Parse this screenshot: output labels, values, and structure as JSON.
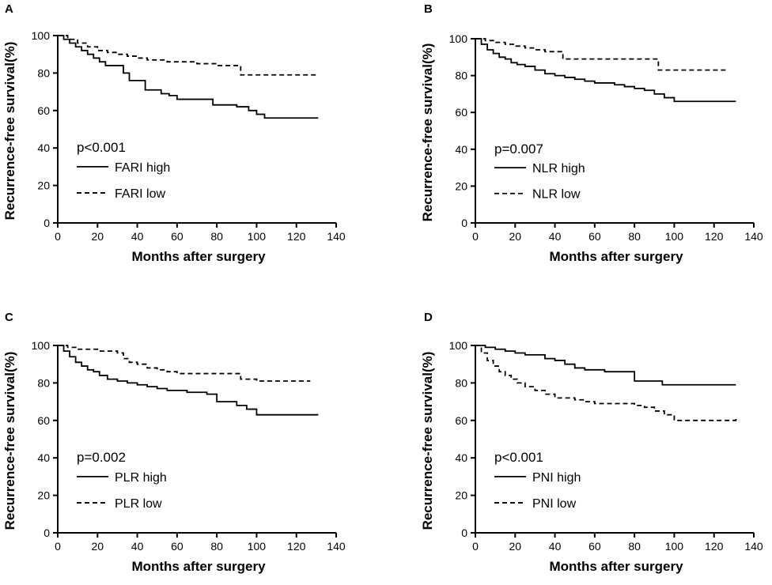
{
  "figure": {
    "panels": [
      "A",
      "B",
      "C",
      "D"
    ]
  },
  "chart_data": [
    {
      "type": "line",
      "panel_label": "A",
      "title": "",
      "xlabel": "Months after surgery",
      "ylabel": "Recurrence-free survival(%)",
      "xlim": [
        0,
        140
      ],
      "ylim": [
        0,
        100
      ],
      "xticks": [
        0,
        20,
        40,
        60,
        80,
        100,
        120,
        140
      ],
      "yticks": [
        0,
        20,
        40,
        60,
        80,
        100
      ],
      "grid": false,
      "annotation": "p<0.001",
      "series": [
        {
          "name": "FARI high",
          "style": "solid",
          "x": [
            0,
            3,
            6,
            9,
            12,
            15,
            18,
            21,
            24,
            27,
            30,
            33,
            36,
            40,
            44,
            48,
            52,
            56,
            60,
            66,
            72,
            78,
            84,
            90,
            96,
            100,
            104,
            110,
            120,
            131
          ],
          "y": [
            100,
            98,
            96,
            94,
            92,
            90,
            88,
            86,
            84,
            84,
            84,
            80,
            76,
            76,
            71,
            71,
            69,
            68,
            66,
            66,
            66,
            63,
            63,
            62,
            60,
            58,
            56,
            56,
            56,
            56
          ]
        },
        {
          "name": "FARI low",
          "style": "dashed",
          "x": [
            0,
            5,
            10,
            15,
            20,
            25,
            30,
            35,
            40,
            45,
            50,
            55,
            60,
            70,
            80,
            90,
            92,
            100,
            110,
            120,
            131
          ],
          "y": [
            100,
            98,
            96,
            94,
            92,
            91,
            90,
            89,
            88,
            87,
            87,
            86,
            86,
            85,
            84,
            84,
            79,
            79,
            79,
            79,
            79
          ]
        }
      ]
    },
    {
      "type": "line",
      "panel_label": "B",
      "title": "",
      "xlabel": "Months after surgery",
      "ylabel": "Recurrence-free survival(%)",
      "xlim": [
        0,
        140
      ],
      "ylim": [
        0,
        100
      ],
      "xticks": [
        0,
        20,
        40,
        60,
        80,
        100,
        120,
        140
      ],
      "yticks": [
        0,
        20,
        40,
        60,
        80,
        100
      ],
      "grid": false,
      "annotation": "p=0.007",
      "series": [
        {
          "name": "NLR high",
          "style": "solid",
          "x": [
            0,
            3,
            6,
            9,
            12,
            15,
            18,
            21,
            25,
            30,
            35,
            40,
            45,
            50,
            55,
            60,
            65,
            70,
            75,
            80,
            85,
            90,
            95,
            100,
            110,
            120,
            131
          ],
          "y": [
            100,
            97,
            94,
            92,
            90,
            89,
            87,
            86,
            85,
            83,
            81,
            80,
            79,
            78,
            77,
            76,
            76,
            75,
            74,
            73,
            72,
            70,
            68,
            66,
            66,
            66,
            66
          ]
        },
        {
          "name": "NLR low",
          "style": "dashed",
          "x": [
            0,
            5,
            10,
            15,
            20,
            25,
            30,
            35,
            40,
            44,
            50,
            60,
            70,
            80,
            90,
            92,
            100,
            110,
            120,
            127
          ],
          "y": [
            100,
            99,
            98,
            97,
            96,
            95,
            94,
            93,
            93,
            89,
            89,
            89,
            89,
            89,
            89,
            83,
            83,
            83,
            83,
            83
          ]
        }
      ]
    },
    {
      "type": "line",
      "panel_label": "C",
      "title": "",
      "xlabel": "Months after surgery",
      "ylabel": "Recurrence-free survival(%)",
      "xlim": [
        0,
        140
      ],
      "ylim": [
        0,
        100
      ],
      "xticks": [
        0,
        20,
        40,
        60,
        80,
        100,
        120,
        140
      ],
      "yticks": [
        0,
        20,
        40,
        60,
        80,
        100
      ],
      "grid": false,
      "annotation": "p=0.002",
      "series": [
        {
          "name": "PLR high",
          "style": "solid",
          "x": [
            0,
            3,
            6,
            9,
            12,
            15,
            18,
            21,
            25,
            30,
            35,
            40,
            45,
            50,
            55,
            60,
            65,
            70,
            75,
            80,
            85,
            90,
            95,
            100,
            110,
            120,
            131
          ],
          "y": [
            100,
            97,
            94,
            91,
            89,
            87,
            86,
            84,
            82,
            81,
            80,
            79,
            78,
            77,
            76,
            76,
            75,
            75,
            74,
            70,
            70,
            68,
            66,
            63,
            63,
            63,
            63
          ]
        },
        {
          "name": "PLR low",
          "style": "dashed",
          "x": [
            0,
            5,
            10,
            15,
            20,
            25,
            30,
            33,
            36,
            40,
            45,
            50,
            55,
            60,
            70,
            80,
            88,
            92,
            100,
            110,
            120,
            127
          ],
          "y": [
            100,
            99,
            98,
            98,
            97,
            97,
            96,
            93,
            91,
            90,
            88,
            87,
            86,
            85,
            85,
            85,
            85,
            82,
            81,
            81,
            81,
            81
          ]
        }
      ]
    },
    {
      "type": "line",
      "panel_label": "D",
      "title": "",
      "xlabel": "Months after surgery",
      "ylabel": "Recurrence-free survival(%)",
      "xlim": [
        0,
        140
      ],
      "ylim": [
        0,
        100
      ],
      "xticks": [
        0,
        20,
        40,
        60,
        80,
        100,
        120,
        140
      ],
      "yticks": [
        0,
        20,
        40,
        60,
        80,
        100
      ],
      "grid": false,
      "annotation": "p<0.001",
      "series": [
        {
          "name": "PNI high",
          "style": "solid",
          "x": [
            0,
            5,
            10,
            15,
            20,
            25,
            30,
            35,
            40,
            45,
            50,
            55,
            60,
            65,
            70,
            76,
            80,
            90,
            94,
            100,
            110,
            120,
            131
          ],
          "y": [
            100,
            99,
            98,
            97,
            96,
            95,
            95,
            93,
            92,
            90,
            88,
            87,
            87,
            86,
            86,
            86,
            81,
            81,
            79,
            79,
            79,
            79,
            79
          ]
        },
        {
          "name": "PNI low",
          "style": "dashed",
          "x": [
            0,
            3,
            6,
            9,
            12,
            15,
            18,
            21,
            25,
            30,
            35,
            40,
            45,
            50,
            55,
            60,
            65,
            70,
            75,
            80,
            85,
            90,
            95,
            100,
            110,
            120,
            131
          ],
          "y": [
            100,
            96,
            92,
            89,
            86,
            84,
            82,
            80,
            78,
            76,
            74,
            72,
            72,
            71,
            70,
            69,
            69,
            69,
            69,
            68,
            67,
            65,
            63,
            60,
            60,
            60,
            61
          ]
        }
      ]
    }
  ]
}
